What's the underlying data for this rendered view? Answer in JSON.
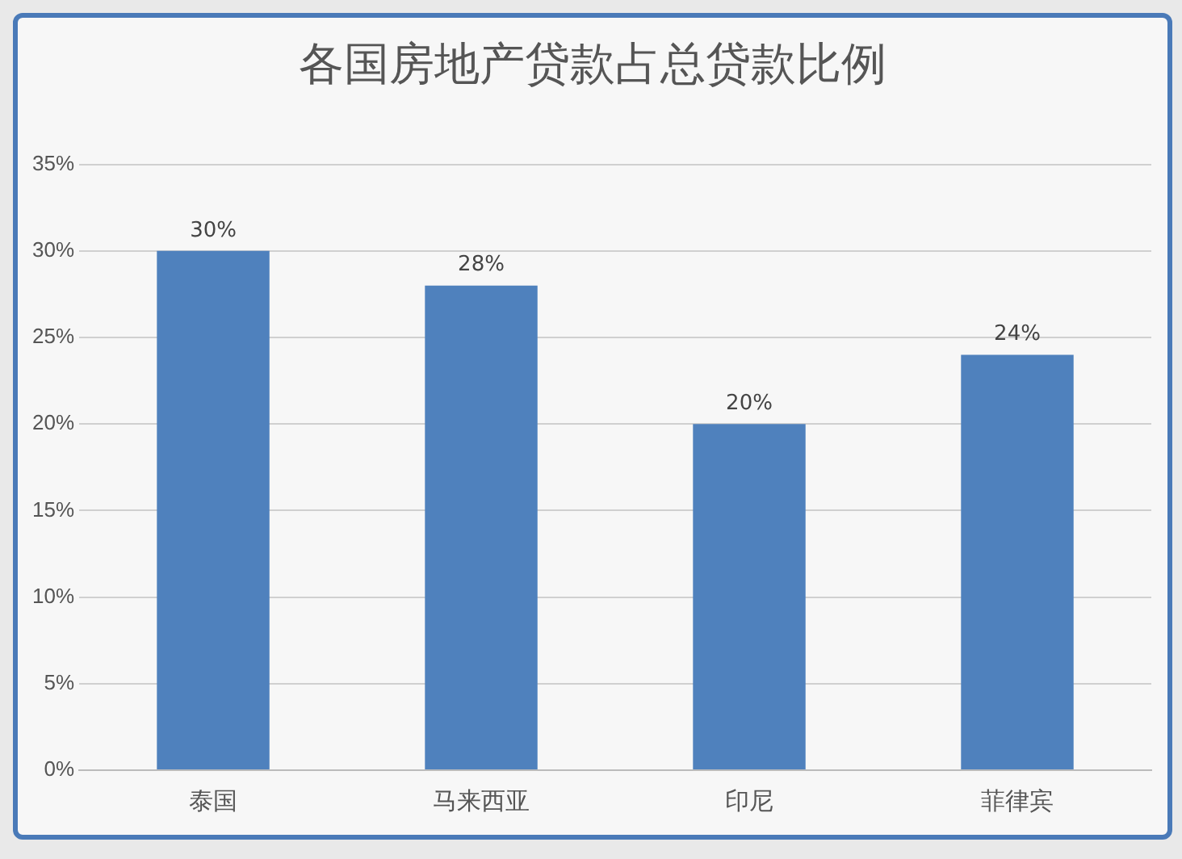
{
  "chart_data": {
    "type": "bar",
    "title": "各国房地产贷款占总贷款比例",
    "categories": [
      "泰国",
      "马来西亚",
      "印尼",
      "菲律宾"
    ],
    "values": [
      30,
      28,
      20,
      24
    ],
    "value_labels": [
      "30%",
      "28%",
      "20%",
      "24%"
    ],
    "color": "#4f81bd",
    "ylim": [
      0,
      35
    ],
    "yticks": [
      {
        "value": 0,
        "label": "0%"
      },
      {
        "value": 5,
        "label": "5%"
      },
      {
        "value": 10,
        "label": "10%"
      },
      {
        "value": 15,
        "label": "15%"
      },
      {
        "value": 20,
        "label": "20%"
      },
      {
        "value": 25,
        "label": "25%"
      },
      {
        "value": 30,
        "label": "30%"
      },
      {
        "value": 35,
        "label": "35%"
      }
    ],
    "grid": "y"
  }
}
